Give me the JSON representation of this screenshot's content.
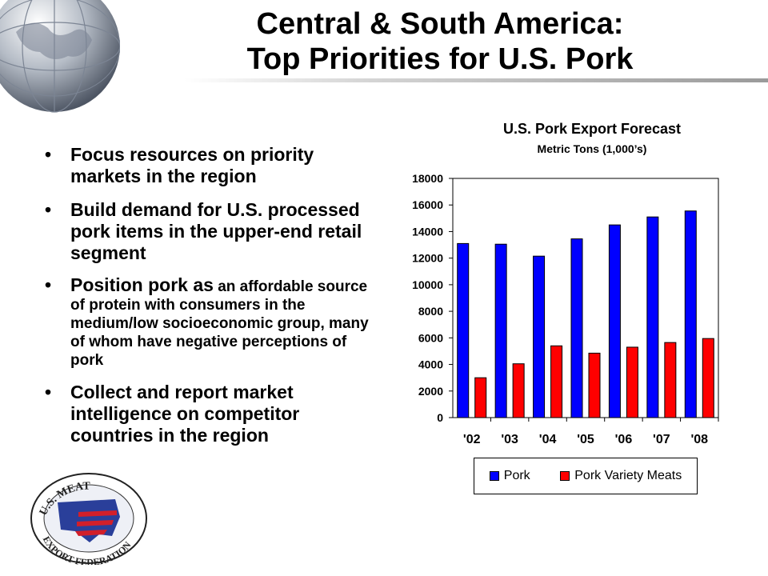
{
  "slide": {
    "title_line1": "Central & South America:",
    "title_line2": "Top Priorities for U.S. Pork"
  },
  "bullets": [
    {
      "text": "Focus resources on priority markets in the region"
    },
    {
      "text": "Build demand for U.S. processed pork items in the upper-end retail segment"
    },
    {
      "lead": "Position pork as",
      "text": " an affordable source of protein with consumers in the medium/low socioeconomic group, many of whom have negative perceptions of pork"
    },
    {
      "text": "Collect and report market intelligence on competitor countries in the region"
    }
  ],
  "bullet_char": "•",
  "logo": {
    "text_top": "U.S. MEAT",
    "text_bottom": "EXPORT FEDERATION"
  },
  "chart_data": {
    "type": "bar",
    "title": "U.S. Pork Export Forecast",
    "subtitle": "Metric Tons (1,000’s)",
    "categories": [
      "'02",
      "'03",
      "'04",
      "'05",
      "'06",
      "'07",
      "'08"
    ],
    "series": [
      {
        "name": "Pork",
        "color": "#0000ff",
        "values": [
          13100,
          13050,
          12150,
          13450,
          14500,
          15100,
          15550
        ]
      },
      {
        "name": "Pork Variety Meats",
        "color": "#ff0000",
        "values": [
          3000,
          4050,
          5400,
          4850,
          5300,
          5650,
          5950
        ]
      }
    ],
    "yticks": [
      0,
      2000,
      4000,
      6000,
      8000,
      10000,
      12000,
      14000,
      16000,
      18000
    ],
    "ylim": [
      0,
      18000
    ],
    "grid": false,
    "legend": "bottom"
  }
}
